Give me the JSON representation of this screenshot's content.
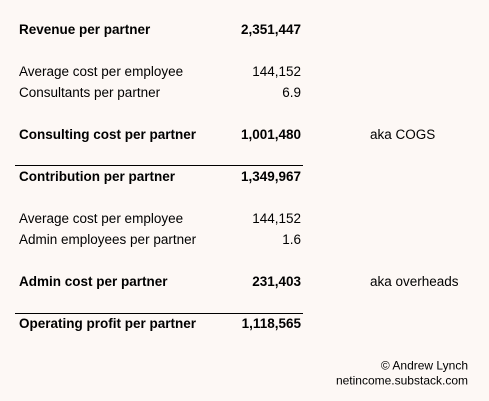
{
  "table": {
    "rows": [
      {
        "label": "Revenue per partner",
        "value": "2,351,447"
      },
      {
        "label": "Average cost per employee",
        "value": "144,152"
      },
      {
        "label": "Consultants per partner",
        "value": "6.9"
      },
      {
        "label": "Consulting cost per partner",
        "value": "1,001,480",
        "note": "aka COGS"
      },
      {
        "label": "Contribution per partner",
        "value": "1,349,967"
      },
      {
        "label": "Average cost per employee",
        "value": "144,152"
      },
      {
        "label": "Admin employees per partner",
        "value": "1.6"
      },
      {
        "label": "Admin cost per partner",
        "value": "231,403",
        "note": "aka overheads"
      },
      {
        "label": "Operating profit per partner",
        "value": "1,118,565"
      }
    ]
  },
  "footer": {
    "copyright": "© Andrew Lynch",
    "site": "netincome.substack.com"
  }
}
